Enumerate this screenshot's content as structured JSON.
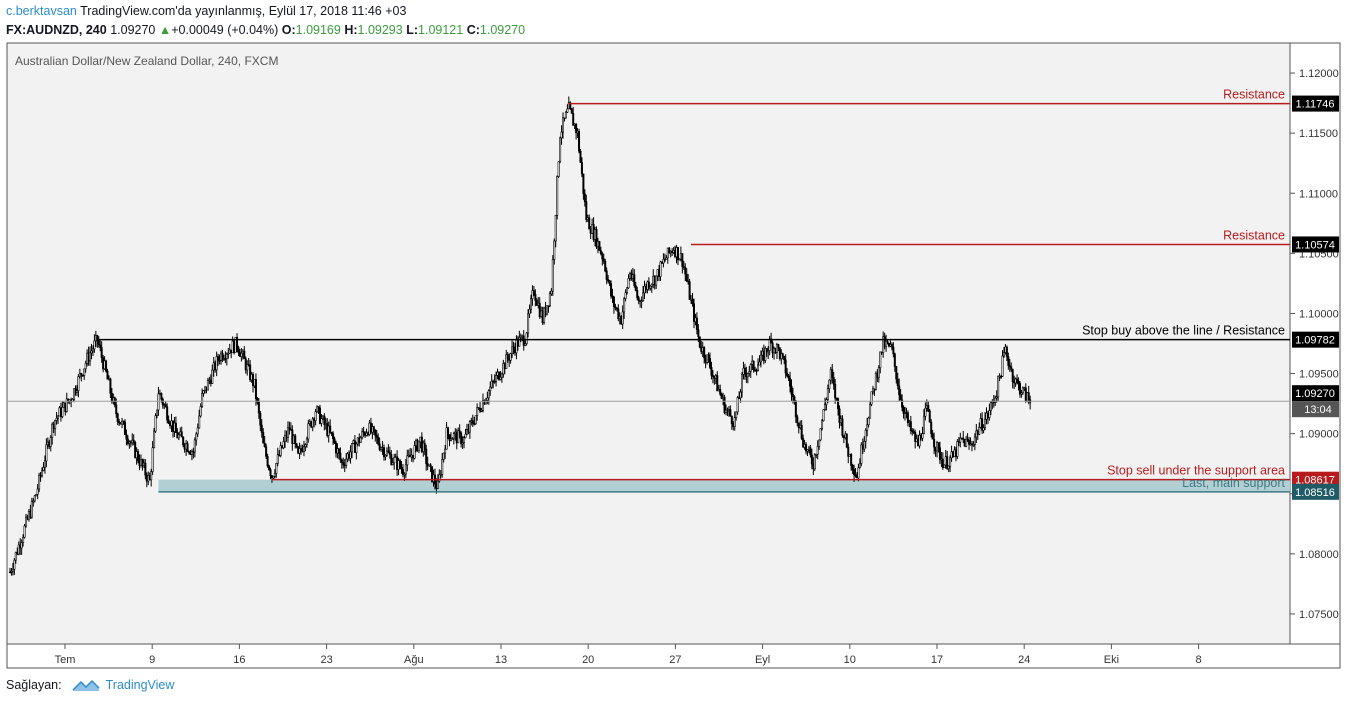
{
  "header": {
    "author": "c.berktavsan",
    "published": "TradingView.com'da yayınlanmış, Eylül 17, 2018 11:46 +03",
    "symbol": "FX:AUDNZD, 240",
    "last": "1.09270",
    "change_arrow": "▲",
    "change": "+0.00049 (+0.04%)",
    "o_label": "O:",
    "o": "1.09169",
    "h_label": "H:",
    "h": "1.09293",
    "l_label": "L:",
    "l": "1.09121",
    "c_label": "C:",
    "c": "1.09270"
  },
  "footer": {
    "label": "Sağlayan:",
    "brand": "TradingView"
  },
  "colors": {
    "resistance": "#b71c1c",
    "support": "#3d7a87",
    "support_fill": "#b2cfd3",
    "price_up": "#3a9d3a",
    "link": "#2a8ccd"
  },
  "chart_data": {
    "type": "candlestick",
    "title": "Australian Dollar/New Zealand Dollar, 240, FXCM",
    "ylim": [
      1.0725,
      1.1225
    ],
    "y_ticks": [
      "1.12000",
      "1.11500",
      "1.11000",
      "1.10500",
      "1.10000",
      "1.09500",
      "1.09000",
      "1.08500",
      "1.08000",
      "1.07500"
    ],
    "x_ticks": [
      "Tem",
      "9",
      "16",
      "23",
      "Ağu",
      "13",
      "20",
      "27",
      "Eyl",
      "10",
      "17",
      "24",
      "Eki",
      "8"
    ],
    "price_path": [
      [
        0,
        1.0785
      ],
      [
        3,
        1.085
      ],
      [
        5,
        1.091
      ],
      [
        7,
        1.093
      ],
      [
        9,
        1.0965
      ],
      [
        10,
        1.0978
      ],
      [
        11,
        1.095
      ],
      [
        12,
        1.092
      ],
      [
        14,
        1.089
      ],
      [
        16,
        1.086
      ],
      [
        17,
        1.0935
      ],
      [
        19,
        1.09
      ],
      [
        21,
        1.0885
      ],
      [
        22,
        1.093
      ],
      [
        24,
        1.0965
      ],
      [
        26,
        1.0975
      ],
      [
        28,
        1.094
      ],
      [
        29,
        1.089
      ],
      [
        30,
        1.0865
      ],
      [
        32,
        1.0905
      ],
      [
        33,
        1.088
      ],
      [
        35,
        1.092
      ],
      [
        37,
        1.0895
      ],
      [
        38,
        1.0875
      ],
      [
        39,
        1.0885
      ],
      [
        41,
        1.0905
      ],
      [
        43,
        1.0885
      ],
      [
        45,
        1.087
      ],
      [
        47,
        1.0895
      ],
      [
        48,
        1.087
      ],
      [
        49,
        1.0855
      ],
      [
        50,
        1.09
      ],
      [
        52,
        1.0895
      ],
      [
        54,
        1.0925
      ],
      [
        56,
        1.095
      ],
      [
        58,
        1.0975
      ],
      [
        59,
        1.098
      ],
      [
        60,
        1.102
      ],
      [
        61,
        1.0995
      ],
      [
        62,
        1.102
      ],
      [
        63,
        1.115
      ],
      [
        64,
        1.117
      ],
      [
        65,
        1.115
      ],
      [
        66,
        1.108
      ],
      [
        67,
        1.1065
      ],
      [
        68,
        1.1045
      ],
      [
        69,
        1.101
      ],
      [
        70,
        1.0995
      ],
      [
        71,
        1.1035
      ],
      [
        72,
        1.101
      ],
      [
        73,
        1.1025
      ],
      [
        74,
        1.103
      ],
      [
        75,
        1.1045
      ],
      [
        76,
        1.1055
      ],
      [
        77,
        1.1045
      ],
      [
        78,
        1.101
      ],
      [
        79,
        1.0975
      ],
      [
        80,
        1.096
      ],
      [
        82,
        1.092
      ],
      [
        83,
        1.091
      ],
      [
        84,
        1.095
      ],
      [
        86,
        1.096
      ],
      [
        87,
        1.0975
      ],
      [
        88,
        1.097
      ],
      [
        89,
        1.095
      ],
      [
        90,
        1.092
      ],
      [
        91,
        1.089
      ],
      [
        92,
        1.0875
      ],
      [
        93,
        1.091
      ],
      [
        94,
        1.095
      ],
      [
        95,
        1.0915
      ],
      [
        96,
        1.0885
      ],
      [
        97,
        1.0865
      ],
      [
        98,
        1.0905
      ],
      [
        99,
        1.094
      ],
      [
        100,
        1.0975
      ],
      [
        101,
        1.097
      ],
      [
        102,
        1.093
      ],
      [
        103,
        1.0905
      ],
      [
        104,
        1.089
      ],
      [
        105,
        1.092
      ],
      [
        106,
        1.089
      ],
      [
        107,
        1.0875
      ],
      [
        108,
        1.088
      ],
      [
        109,
        1.0895
      ],
      [
        110,
        1.089
      ],
      [
        111,
        1.0905
      ],
      [
        112,
        1.0915
      ],
      [
        113,
        1.0935
      ],
      [
        114,
        1.097
      ],
      [
        115,
        1.0945
      ],
      [
        116,
        1.0935
      ],
      [
        117,
        1.0925
      ]
    ],
    "levels": [
      {
        "label": "Resistance",
        "value": "1.11746",
        "price": 1.11746,
        "start": 64.0,
        "color": "#b71c1c",
        "tag": "#000000"
      },
      {
        "label": "Resistance",
        "value": "1.10574",
        "price": 1.10574,
        "start": 78.0,
        "color": "#b71c1c",
        "tag": "#000000"
      },
      {
        "label": "Stop buy above the line / Resistance",
        "value": "1.09782",
        "price": 1.09782,
        "start": 10.0,
        "color": "#000000",
        "tag": "#000000"
      },
      {
        "label": "Stop sell under the support area",
        "value": "1.08617",
        "price": 1.08617,
        "start": 30.0,
        "color": "#b71c1c",
        "tag": "#b71c1c"
      },
      {
        "label": "Last, main support",
        "value": "1.08516",
        "price": 1.08516,
        "start": 17.0,
        "color": "#3d7a87",
        "tag": "#1f5a67"
      }
    ],
    "current": {
      "price": 1.0927,
      "value": "1.09270",
      "countdown": "13:04"
    }
  }
}
